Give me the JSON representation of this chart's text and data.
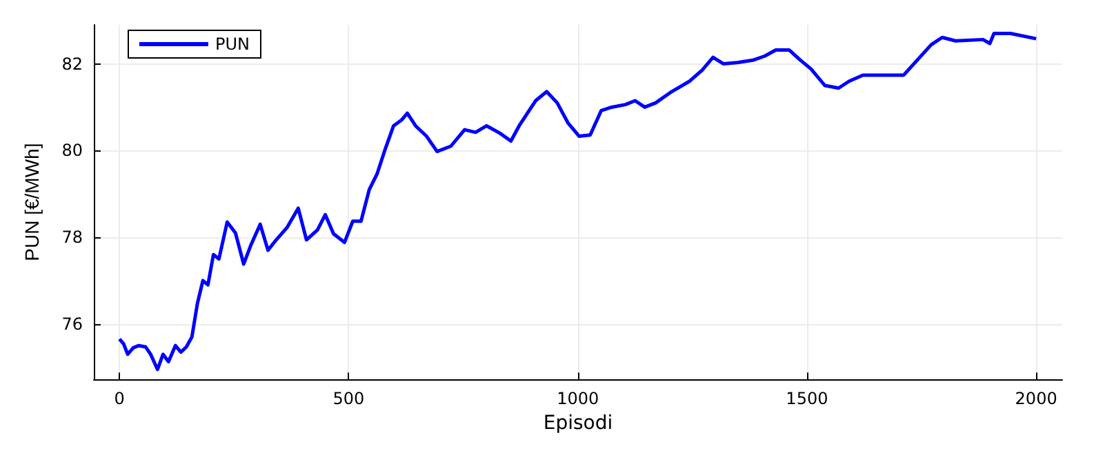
{
  "chart_data": {
    "type": "line",
    "xlabel": "Episodi",
    "ylabel": "PUN [€/MWh]",
    "xlim": [
      -56,
      2057
    ],
    "ylim": [
      74.72,
      82.9
    ],
    "xticks": [
      0,
      500,
      1000,
      1500,
      2000
    ],
    "yticks": [
      76,
      78,
      80,
      82
    ],
    "grid": true,
    "legend": "top left",
    "marker": "none",
    "line_style": "solid",
    "x": [
      0,
      9,
      18,
      30,
      42,
      57,
      68,
      83,
      95,
      107,
      122,
      134,
      146,
      158,
      170,
      182,
      193,
      205,
      217,
      235,
      253,
      271,
      286,
      307,
      324,
      342,
      366,
      390,
      408,
      432,
      449,
      467,
      491,
      509,
      527,
      545,
      562,
      580,
      598,
      616,
      628,
      646,
      670,
      693,
      723,
      753,
      777,
      801,
      830,
      854,
      872,
      890,
      908,
      932,
      955,
      979,
      1003,
      1027,
      1051,
      1074,
      1104,
      1125,
      1146,
      1170,
      1205,
      1244,
      1271,
      1295,
      1318,
      1348,
      1384,
      1408,
      1432,
      1461,
      1485,
      1509,
      1539,
      1569,
      1592,
      1622,
      1652,
      1711,
      1741,
      1771,
      1795,
      1824,
      1884,
      1899,
      1908,
      1944,
      2000
    ],
    "series": [
      {
        "name": "PUN",
        "color": "#0000ff",
        "values": [
          75.65,
          75.54,
          75.3,
          75.45,
          75.5,
          75.47,
          75.3,
          74.95,
          75.3,
          75.13,
          75.5,
          75.35,
          75.47,
          75.7,
          76.47,
          77.0,
          76.9,
          77.6,
          77.5,
          78.35,
          78.1,
          77.38,
          77.8,
          78.3,
          77.7,
          77.94,
          78.23,
          78.67,
          77.94,
          78.17,
          78.52,
          78.08,
          77.88,
          78.37,
          78.37,
          79.1,
          79.46,
          80.04,
          80.57,
          80.71,
          80.86,
          80.57,
          80.33,
          79.98,
          80.1,
          80.48,
          80.42,
          80.57,
          80.4,
          80.22,
          80.57,
          80.86,
          81.15,
          81.36,
          81.1,
          80.63,
          80.33,
          80.36,
          80.92,
          81.0,
          81.06,
          81.15,
          81.0,
          81.1,
          81.36,
          81.6,
          81.85,
          82.15,
          82.0,
          82.03,
          82.09,
          82.18,
          82.32,
          82.32,
          82.09,
          81.88,
          81.5,
          81.44,
          81.6,
          81.74,
          81.74,
          81.74,
          82.09,
          82.44,
          82.61,
          82.53,
          82.56,
          82.47,
          82.7,
          82.7,
          82.58
        ]
      }
    ]
  }
}
